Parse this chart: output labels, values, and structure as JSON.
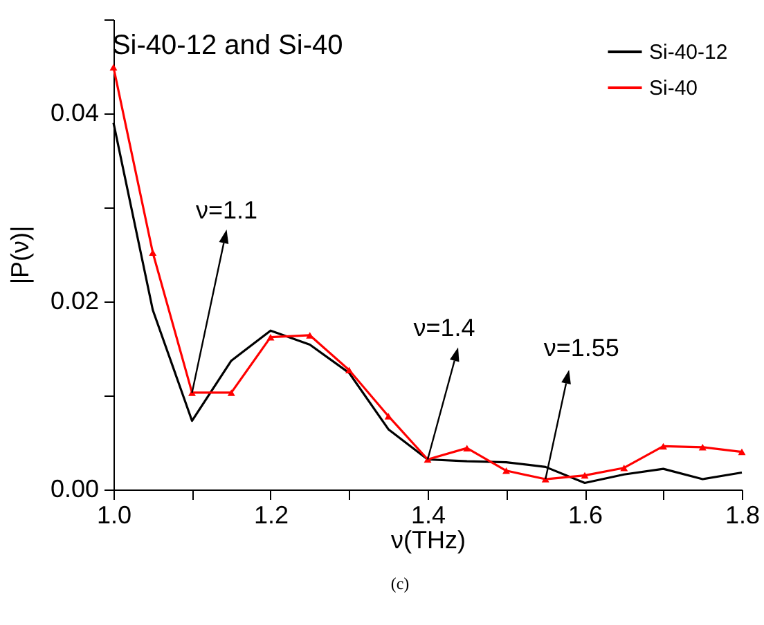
{
  "chart_data": {
    "type": "line",
    "title": "Si-40-12 and Si-40",
    "xlabel": "ν(THz)",
    "ylabel": "|P(ν)|",
    "x": [
      1.0,
      1.05,
      1.1,
      1.15,
      1.2,
      1.25,
      1.3,
      1.35,
      1.4,
      1.45,
      1.5,
      1.55,
      1.6,
      1.65,
      1.7,
      1.75,
      1.8
    ],
    "series": [
      {
        "name": "Si-40-12",
        "color": "#000000",
        "marker": "none",
        "values": [
          0.039,
          0.0191,
          0.0073,
          0.0137,
          0.0169,
          0.0154,
          0.0124,
          0.0064,
          0.0032,
          0.003,
          0.0029,
          0.0024,
          0.0007,
          0.0016,
          0.0022,
          0.0011,
          0.0018
        ]
      },
      {
        "name": "Si-40",
        "color": "#ff0000",
        "marker": "triangle",
        "values": [
          0.0449,
          0.0252,
          0.0103,
          0.0103,
          0.0162,
          0.0164,
          0.0127,
          0.0078,
          0.0032,
          0.0044,
          0.002,
          0.0011,
          0.0015,
          0.0023,
          0.0046,
          0.0045,
          0.004
        ]
      }
    ],
    "xlim": [
      1.0,
      1.8
    ],
    "xticks": [
      {
        "value": 1.0,
        "label": "1.0"
      },
      {
        "value": 1.1,
        "label": null
      },
      {
        "value": 1.2,
        "label": "1.2"
      },
      {
        "value": 1.3,
        "label": null
      },
      {
        "value": 1.4,
        "label": "1.4"
      },
      {
        "value": 1.5,
        "label": null
      },
      {
        "value": 1.6,
        "label": "1.6"
      },
      {
        "value": 1.7,
        "label": null
      },
      {
        "value": 1.8,
        "label": "1.8"
      }
    ],
    "ylim": [
      0,
      0.05
    ],
    "yticks": [
      {
        "value": 0,
        "label": "0.00"
      },
      {
        "value": 0.01,
        "label": null
      },
      {
        "value": 0.02,
        "label": "0.02"
      },
      {
        "value": 0.03,
        "label": null
      },
      {
        "value": 0.04,
        "label": "0.04"
      },
      {
        "value": 0.05,
        "label": null
      }
    ],
    "grid": false,
    "legend": "top right",
    "annotations": [
      {
        "text": "ν=1.1",
        "x": 1.1,
        "y": 0.0103
      },
      {
        "text": "ν=1.4",
        "x": 1.4,
        "y": 0.0032
      },
      {
        "text": "ν=1.55",
        "x": 1.55,
        "y": 0.0011
      },
      "(c)"
    ]
  }
}
